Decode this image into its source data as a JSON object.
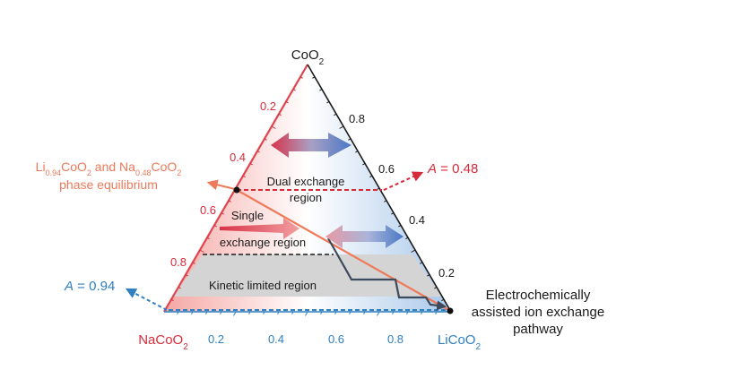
{
  "vertices": {
    "top": {
      "base": "CoO",
      "sub": "2"
    },
    "left": {
      "base": "NaCoO",
      "sub": "2"
    },
    "right": {
      "base": "LiCoO",
      "sub": "2"
    }
  },
  "ticks": {
    "left_edge": [
      "0.2",
      "0.4",
      "0.6",
      "0.8"
    ],
    "right_edge": [
      "0.8",
      "0.6",
      "0.4",
      "0.2"
    ],
    "bottom_edge": [
      "0.2",
      "0.4",
      "0.6",
      "0.8"
    ]
  },
  "regions": {
    "dual_line1": "Dual exchange",
    "dual_line2": "region",
    "single_line1": "Single",
    "single_line2": "exchange region",
    "kinetic": "Kinetic limited region"
  },
  "equilibrium_label": {
    "p1": "Li",
    "s1": "0.94",
    "p2": "CoO",
    "s2": "2",
    "p3": " and Na",
    "s3": "0.48",
    "p4": "CoO",
    "s4": "2",
    "line2": "phase equilibrium"
  },
  "A_high": {
    "symbol": "A",
    "value": " = 0.48"
  },
  "A_low": {
    "symbol": "A",
    "value": " = 0.94"
  },
  "pathway": {
    "line1": "Electrochemically",
    "line2": "assisted ion exchange",
    "line3": "pathway"
  },
  "colors": {
    "red": "#d62b38",
    "blue": "#2f7fc1",
    "orange": "#ee7a5a",
    "path": "#3d4a5c",
    "kinetic_fill": "#d4d4d4"
  }
}
